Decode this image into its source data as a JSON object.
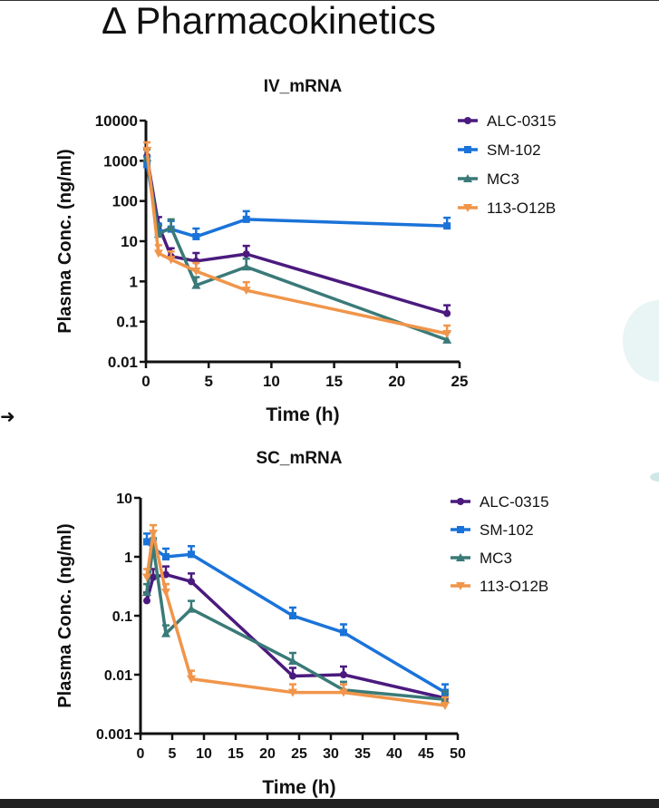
{
  "title": "Δ Pharmacokinetics",
  "chart_data": [
    {
      "type": "line",
      "title": "IV_mRNA",
      "xlabel": "Time (h)",
      "ylabel": "Plasma Conc. (ng/ml)",
      "yscale": "log",
      "xlim": [
        0,
        25
      ],
      "ylim": [
        0.01,
        10000
      ],
      "xticks": [
        "0",
        "5",
        "10",
        "15",
        "20",
        "25"
      ],
      "yticks": [
        "0.01",
        "0.1",
        "1",
        "10",
        "100",
        "1000",
        "10000"
      ],
      "legend_position": "top-right",
      "x": [
        0.083,
        1,
        2,
        4,
        8,
        24
      ],
      "series": [
        {
          "name": "ALC-0315",
          "color": "#4b1a7e",
          "marker": "circle",
          "values": [
            1300,
            25,
            4.2,
            3.2,
            4.8,
            0.16
          ]
        },
        {
          "name": "SM-102",
          "color": "#1a73d9",
          "marker": "square",
          "values": [
            800,
            17,
            20,
            13,
            35,
            24
          ]
        },
        {
          "name": "MC3",
          "color": "#3a7a78",
          "marker": "triangle",
          "values": [
            1200,
            15,
            22,
            0.8,
            2.3,
            0.035
          ]
        },
        {
          "name": "113-O12B",
          "color": "#f0954a",
          "marker": "triangle-down",
          "values": [
            1800,
            5,
            3.5,
            1.8,
            0.6,
            0.05
          ]
        }
      ]
    },
    {
      "type": "line",
      "title": "SC_mRNA",
      "xlabel": "Time (h)",
      "ylabel": "Plasma Conc. (ng/ml)",
      "yscale": "log",
      "xlim": [
        0,
        50
      ],
      "ylim": [
        0.001,
        10
      ],
      "xticks": [
        "0",
        "5",
        "10",
        "15",
        "20",
        "25",
        "30",
        "35",
        "40",
        "45",
        "50"
      ],
      "yticks": [
        "0.001",
        "0.01",
        "0.1",
        "1",
        "10"
      ],
      "legend_position": "top-right",
      "x": [
        1,
        2,
        4,
        8,
        24,
        32,
        48
      ],
      "series": [
        {
          "name": "ALC-0315",
          "color": "#4b1a7e",
          "marker": "circle",
          "values": [
            0.18,
            0.45,
            0.5,
            0.38,
            0.0095,
            0.01,
            0.004
          ]
        },
        {
          "name": "SM-102",
          "color": "#1a73d9",
          "marker": "square",
          "values": [
            1.8,
            1.4,
            1.0,
            1.1,
            0.1,
            0.052,
            0.005
          ]
        },
        {
          "name": "MC3",
          "color": "#3a7a78",
          "marker": "triangle",
          "values": [
            0.25,
            1.5,
            0.05,
            0.13,
            0.017,
            0.0055,
            0.0038
          ]
        },
        {
          "name": "113-O12B",
          "color": "#f0954a",
          "marker": "triangle-down",
          "values": [
            0.45,
            2.5,
            0.25,
            0.0085,
            0.005,
            0.005,
            0.003
          ]
        }
      ]
    }
  ]
}
